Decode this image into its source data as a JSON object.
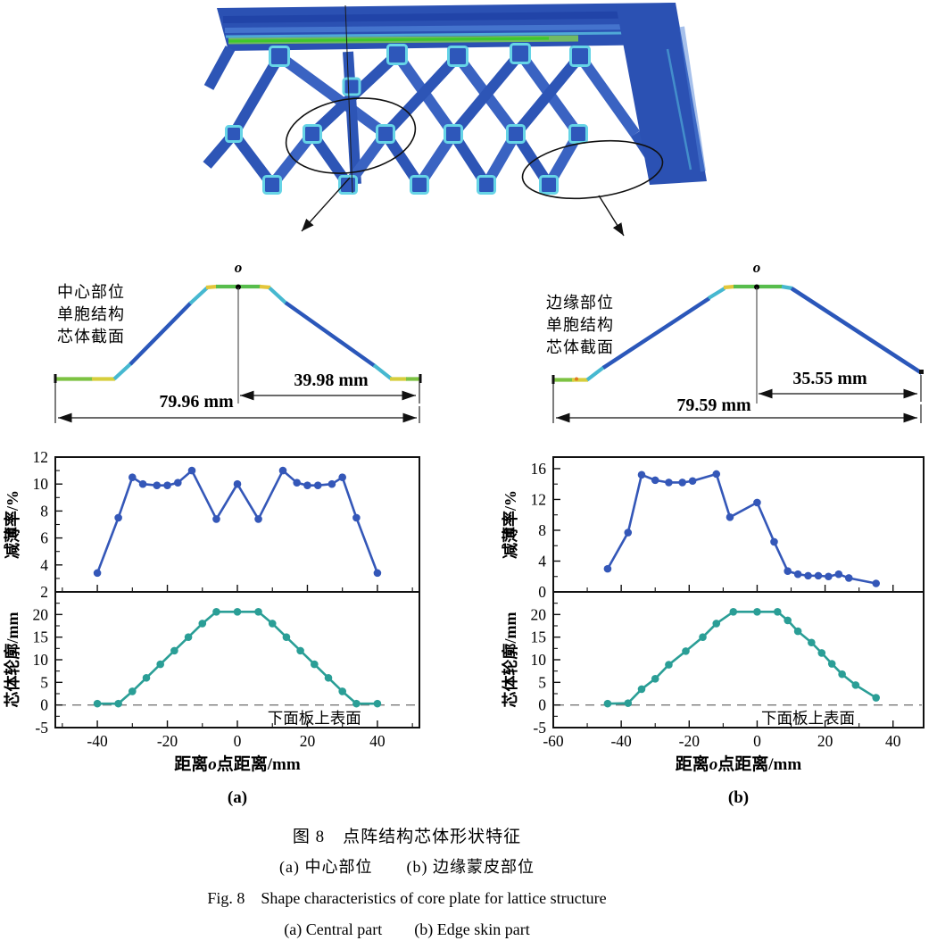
{
  "colors": {
    "series_blue": "#3457b8",
    "series_teal": "#2a9e96",
    "lattice_blue": "#2b51b3",
    "node_cyan": "#66d4e6",
    "stripe_green": "#3fc72c",
    "axis": "#111111"
  },
  "sections": {
    "a": {
      "label_lines": [
        "中心部位",
        "单胞结构",
        "芯体截面"
      ],
      "point_label": "o",
      "dim_half": "39.98 mm",
      "dim_full": "79.96 mm"
    },
    "b": {
      "label_lines": [
        "边缘部位",
        "单胞结构",
        "芯体截面"
      ],
      "point_label": "o",
      "dim_half": "35.55 mm",
      "dim_full": "79.59 mm"
    }
  },
  "charts": {
    "xlabel_parts": [
      "距离",
      "o",
      "点距离/mm"
    ],
    "surface_note": "下面板上表面",
    "panel_a_label": "(a)",
    "panel_b_label": "(b)"
  },
  "chart_data": [
    {
      "id": "a_top",
      "type": "line",
      "panel": "a",
      "ylabel": "减薄率/%",
      "x": [
        -40,
        -34,
        -30,
        -27,
        -23,
        -20,
        -17,
        -13,
        -6,
        0,
        6,
        13,
        17,
        20,
        23,
        27,
        30,
        34,
        40
      ],
      "y": [
        3.4,
        7.5,
        10.5,
        10.0,
        9.9,
        9.9,
        10.1,
        11.0,
        7.4,
        10.0,
        7.4,
        11.0,
        10.1,
        9.9,
        9.9,
        10.0,
        10.5,
        7.5,
        3.4
      ],
      "xlim": [
        -52,
        52
      ],
      "ylim": [
        2,
        12
      ],
      "xticks": [
        -40,
        -20,
        0,
        20,
        40
      ],
      "xminors": [
        -50,
        -30,
        -10,
        10,
        30,
        50
      ],
      "yticks": [
        2,
        4,
        6,
        8,
        10,
        12
      ],
      "yminors": [
        3,
        5,
        7,
        9,
        11
      ],
      "show_xtick_labels": false,
      "zero_dash": false,
      "color": "#3457b8"
    },
    {
      "id": "a_bottom",
      "type": "line",
      "panel": "a",
      "ylabel": "芯体轮廓/mm",
      "x": [
        -40,
        -34,
        -30,
        -26,
        -22,
        -18,
        -14,
        -10,
        -6,
        0,
        6,
        10,
        14,
        18,
        22,
        26,
        30,
        34,
        40
      ],
      "y": [
        0.3,
        0.3,
        3,
        6,
        9,
        12,
        15,
        18,
        20.6,
        20.6,
        20.6,
        18,
        15,
        12,
        9,
        6,
        3,
        0.3,
        0.3
      ],
      "xlim": [
        -52,
        52
      ],
      "ylim": [
        -5,
        25
      ],
      "xticks": [
        -40,
        -20,
        0,
        20,
        40
      ],
      "xminors": [
        -50,
        -30,
        -10,
        10,
        30,
        50
      ],
      "yticks": [
        -5,
        0,
        5,
        10,
        15,
        20
      ],
      "yminors": [
        -2.5,
        2.5,
        7.5,
        12.5,
        17.5,
        22.5
      ],
      "show_xtick_labels": true,
      "zero_dash": true,
      "note_x": 22,
      "panel_label": "(a)",
      "color": "#2a9e96"
    },
    {
      "id": "b_top",
      "type": "line",
      "panel": "b",
      "ylabel": "减薄率/%",
      "x": [
        -44,
        -38,
        -34,
        -30,
        -26,
        -22,
        -19,
        -12,
        -8,
        0,
        5,
        9,
        12,
        15,
        18,
        21,
        24,
        27,
        35
      ],
      "y": [
        3.0,
        7.7,
        15.2,
        14.5,
        14.2,
        14.2,
        14.4,
        15.3,
        9.7,
        11.6,
        6.5,
        2.7,
        2.3,
        2.1,
        2.1,
        2.0,
        2.3,
        1.8,
        1.1
      ],
      "xlim": [
        -60,
        49
      ],
      "ylim": [
        0,
        17.5
      ],
      "xticks": [
        -60,
        -40,
        -20,
        0,
        20,
        40
      ],
      "xminors": [
        -50,
        -30,
        -10,
        10,
        30
      ],
      "yticks": [
        0,
        4,
        8,
        12,
        16
      ],
      "yminors": [
        2,
        6,
        10,
        14
      ],
      "show_xtick_labels": false,
      "zero_dash": false,
      "color": "#3457b8"
    },
    {
      "id": "b_bottom",
      "type": "line",
      "panel": "b",
      "ylabel": "芯体轮廓/mm",
      "x": [
        -44,
        -38,
        -34,
        -30,
        -26,
        -21,
        -16,
        -12,
        -7,
        0,
        6,
        9,
        12,
        16,
        19,
        22,
        25,
        29,
        35
      ],
      "y": [
        0.3,
        0.4,
        3.5,
        5.8,
        8.9,
        11.9,
        15.0,
        18.0,
        20.6,
        20.6,
        20.6,
        18.7,
        16.3,
        13.8,
        11.5,
        9.1,
        6.8,
        4.4,
        1.6
      ],
      "xlim": [
        -60,
        49
      ],
      "ylim": [
        -5,
        25
      ],
      "xticks": [
        -60,
        -40,
        -20,
        0,
        20,
        40
      ],
      "xminors": [
        -50,
        -30,
        -10,
        10,
        30
      ],
      "yticks": [
        -5,
        0,
        5,
        10,
        15,
        20
      ],
      "yminors": [
        -2.5,
        2.5,
        7.5,
        12.5,
        17.5,
        22.5
      ],
      "show_xtick_labels": true,
      "zero_dash": true,
      "note_x": 15,
      "panel_label": "(b)",
      "color": "#2a9e96"
    }
  ],
  "caption": {
    "line1": "图 8　点阵结构芯体形状特征",
    "line2": "(a) 中心部位　　(b) 边缘蒙皮部位",
    "line3": "Fig. 8　Shape characteristics of core plate for lattice structure",
    "line4": "(a) Central part　　(b) Edge skin part"
  }
}
